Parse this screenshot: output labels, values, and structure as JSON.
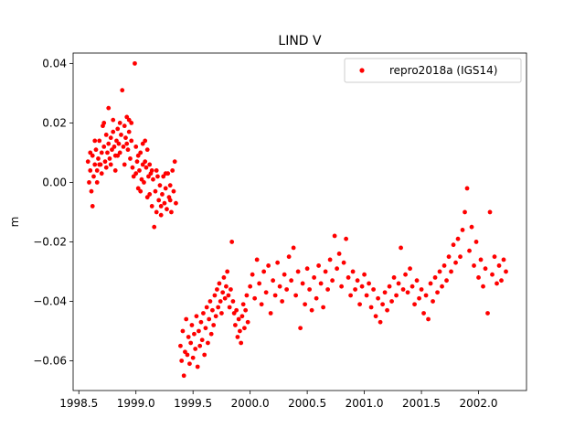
{
  "chart_data": {
    "type": "scatter",
    "title": "LIND V",
    "xlabel": "",
    "ylabel": "m",
    "xlim": [
      1998.45,
      2002.42
    ],
    "ylim": [
      -0.07,
      0.0435
    ],
    "xticks": [
      1998.5,
      1999.0,
      1999.5,
      2000.0,
      2000.5,
      2001.0,
      2001.5,
      2002.0
    ],
    "xtick_labels": [
      "1998.5",
      "1999.0",
      "1999.5",
      "2000.0",
      "2000.5",
      "2001.0",
      "2001.5",
      "2002.0"
    ],
    "yticks": [
      -0.06,
      -0.04,
      -0.02,
      0.0,
      0.02,
      0.04
    ],
    "ytick_labels": [
      "−0.06",
      "−0.04",
      "−0.02",
      "0.00",
      "0.02",
      "0.04"
    ],
    "grid": false,
    "legend_position": "top-right",
    "marker_color": "#ff0000",
    "series": [
      {
        "name": "repro2018a (IGS14)",
        "points": [
          [
            1998.58,
            0.007
          ],
          [
            1998.59,
            0.0
          ],
          [
            1998.6,
            0.004
          ],
          [
            1998.61,
            -0.003
          ],
          [
            1998.62,
            0.009
          ],
          [
            1998.63,
            0.002
          ],
          [
            1998.64,
            0.006
          ],
          [
            1998.65,
            0.011
          ],
          [
            1998.66,
            0.004
          ],
          [
            1998.67,
            0.008
          ],
          [
            1998.68,
            0.014
          ],
          [
            1998.69,
            0.006
          ],
          [
            1998.7,
            0.01
          ],
          [
            1998.71,
            0.019
          ],
          [
            1998.72,
            0.012
          ],
          [
            1998.73,
            0.007
          ],
          [
            1998.74,
            0.016
          ],
          [
            1998.75,
            0.01
          ],
          [
            1998.76,
            0.013
          ],
          [
            1998.77,
            0.008
          ],
          [
            1998.78,
            0.015
          ],
          [
            1998.79,
            0.011
          ],
          [
            1998.8,
            0.017
          ],
          [
            1998.81,
            0.012
          ],
          [
            1998.82,
            0.009
          ],
          [
            1998.83,
            0.014
          ],
          [
            1998.84,
            0.018
          ],
          [
            1998.85,
            0.013
          ],
          [
            1998.86,
            0.01
          ],
          [
            1998.87,
            0.016
          ],
          [
            1998.88,
            0.031
          ],
          [
            1998.89,
            0.012
          ],
          [
            1998.9,
            0.019
          ],
          [
            1998.91,
            0.015
          ],
          [
            1998.92,
            0.022
          ],
          [
            1998.93,
            0.011
          ],
          [
            1998.94,
            0.017
          ],
          [
            1998.95,
            0.008
          ],
          [
            1998.96,
            0.014
          ],
          [
            1998.97,
            0.005
          ],
          [
            1998.98,
            0.002
          ],
          [
            1998.99,
            0.04
          ],
          [
            1999.0,
            0.003
          ],
          [
            1999.01,
            0.007
          ],
          [
            1999.02,
            -0.002
          ],
          [
            1999.03,
            0.004
          ],
          [
            1999.04,
            0.01
          ],
          [
            1999.05,
            0.001
          ],
          [
            1999.06,
            0.006
          ],
          [
            1999.07,
            0.0
          ],
          [
            1999.08,
            0.014
          ],
          [
            1999.09,
            0.005
          ],
          [
            1999.1,
            0.011
          ],
          [
            1999.11,
            0.002
          ],
          [
            1999.12,
            -0.004
          ],
          [
            1999.13,
            0.003
          ],
          [
            1999.14,
            -0.008
          ],
          [
            1999.15,
            0.001
          ],
          [
            1999.16,
            -0.015
          ],
          [
            1999.17,
            -0.003
          ],
          [
            1999.18,
            -0.01
          ],
          [
            1999.19,
            0.002
          ],
          [
            1999.2,
            -0.006
          ],
          [
            1999.21,
            -0.001
          ],
          [
            1999.22,
            -0.011
          ],
          [
            1999.23,
            -0.004
          ],
          [
            1999.24,
            0.002
          ],
          [
            1999.25,
            -0.007
          ],
          [
            1999.26,
            -0.002
          ],
          [
            1999.27,
            -0.009
          ],
          [
            1999.28,
            0.003
          ],
          [
            1999.29,
            -0.005
          ],
          [
            1999.3,
            -0.001
          ],
          [
            1999.31,
            -0.01
          ],
          [
            1999.32,
            0.004
          ],
          [
            1999.33,
            -0.003
          ],
          [
            1999.34,
            0.007
          ],
          [
            1999.35,
            -0.007
          ],
          [
            1998.6,
            0.01
          ],
          [
            1998.62,
            -0.008
          ],
          [
            1998.64,
            0.014
          ],
          [
            1998.66,
            0.0
          ],
          [
            1998.68,
            0.006
          ],
          [
            1998.7,
            0.003
          ],
          [
            1998.72,
            0.02
          ],
          [
            1998.74,
            0.005
          ],
          [
            1998.76,
            0.025
          ],
          [
            1998.78,
            0.006
          ],
          [
            1998.8,
            0.021
          ],
          [
            1998.82,
            0.004
          ],
          [
            1998.84,
            0.009
          ],
          [
            1998.86,
            0.02
          ],
          [
            1998.9,
            0.006
          ],
          [
            1998.92,
            0.013
          ],
          [
            1998.94,
            0.021
          ],
          [
            1998.96,
            0.02
          ],
          [
            1999.0,
            0.012
          ],
          [
            1999.02,
            0.009
          ],
          [
            1999.04,
            -0.003
          ],
          [
            1999.06,
            0.013
          ],
          [
            1999.08,
            0.007
          ],
          [
            1999.1,
            -0.005
          ],
          [
            1999.12,
            0.006
          ],
          [
            1999.14,
            0.004
          ],
          [
            1999.18,
            0.004
          ],
          [
            1999.22,
            -0.008
          ],
          [
            1999.26,
            0.003
          ],
          [
            1999.3,
            -0.006
          ],
          [
            1999.39,
            -0.055
          ],
          [
            1999.4,
            -0.06
          ],
          [
            1999.41,
            -0.05
          ],
          [
            1999.42,
            -0.065
          ],
          [
            1999.43,
            -0.057
          ],
          [
            1999.44,
            -0.046
          ],
          [
            1999.45,
            -0.058
          ],
          [
            1999.46,
            -0.052
          ],
          [
            1999.47,
            -0.061
          ],
          [
            1999.48,
            -0.054
          ],
          [
            1999.49,
            -0.048
          ],
          [
            1999.5,
            -0.059
          ],
          [
            1999.51,
            -0.051
          ],
          [
            1999.52,
            -0.056
          ],
          [
            1999.53,
            -0.045
          ],
          [
            1999.54,
            -0.062
          ],
          [
            1999.55,
            -0.05
          ],
          [
            1999.56,
            -0.055
          ],
          [
            1999.57,
            -0.047
          ],
          [
            1999.58,
            -0.053
          ],
          [
            1999.59,
            -0.044
          ],
          [
            1999.6,
            -0.058
          ],
          [
            1999.61,
            -0.049
          ],
          [
            1999.62,
            -0.042
          ],
          [
            1999.63,
            -0.054
          ],
          [
            1999.64,
            -0.046
          ],
          [
            1999.65,
            -0.04
          ],
          [
            1999.66,
            -0.051
          ],
          [
            1999.67,
            -0.043
          ],
          [
            1999.68,
            -0.048
          ],
          [
            1999.69,
            -0.038
          ],
          [
            1999.7,
            -0.045
          ],
          [
            1999.71,
            -0.036
          ],
          [
            1999.72,
            -0.042
          ],
          [
            1999.73,
            -0.034
          ],
          [
            1999.74,
            -0.04
          ],
          [
            1999.75,
            -0.044
          ],
          [
            1999.76,
            -0.037
          ],
          [
            1999.77,
            -0.032
          ],
          [
            1999.78,
            -0.039
          ],
          [
            1999.79,
            -0.035
          ],
          [
            1999.8,
            -0.03
          ],
          [
            1999.81,
            -0.038
          ],
          [
            1999.82,
            -0.042
          ],
          [
            1999.83,
            -0.036
          ],
          [
            1999.84,
            -0.02
          ],
          [
            1999.85,
            -0.04
          ],
          [
            1999.86,
            -0.044
          ],
          [
            1999.87,
            -0.048
          ],
          [
            1999.88,
            -0.043
          ],
          [
            1999.89,
            -0.052
          ],
          [
            1999.9,
            -0.046
          ],
          [
            1999.91,
            -0.05
          ],
          [
            1999.92,
            -0.054
          ],
          [
            1999.93,
            -0.045
          ],
          [
            1999.94,
            -0.041
          ],
          [
            1999.95,
            -0.049
          ],
          [
            1999.96,
            -0.043
          ],
          [
            1999.97,
            -0.038
          ],
          [
            1999.98,
            -0.047
          ],
          [
            2000.0,
            -0.035
          ],
          [
            2000.02,
            -0.031
          ],
          [
            2000.04,
            -0.039
          ],
          [
            2000.06,
            -0.026
          ],
          [
            2000.08,
            -0.034
          ],
          [
            2000.1,
            -0.041
          ],
          [
            2000.12,
            -0.03
          ],
          [
            2000.14,
            -0.037
          ],
          [
            2000.16,
            -0.028
          ],
          [
            2000.18,
            -0.044
          ],
          [
            2000.2,
            -0.033
          ],
          [
            2000.22,
            -0.038
          ],
          [
            2000.24,
            -0.027
          ],
          [
            2000.26,
            -0.035
          ],
          [
            2000.28,
            -0.04
          ],
          [
            2000.3,
            -0.031
          ],
          [
            2000.32,
            -0.036
          ],
          [
            2000.34,
            -0.025
          ],
          [
            2000.36,
            -0.033
          ],
          [
            2000.38,
            -0.022
          ],
          [
            2000.4,
            -0.038
          ],
          [
            2000.42,
            -0.03
          ],
          [
            2000.44,
            -0.049
          ],
          [
            2000.46,
            -0.034
          ],
          [
            2000.48,
            -0.041
          ],
          [
            2000.5,
            -0.029
          ],
          [
            2000.52,
            -0.036
          ],
          [
            2000.54,
            -0.043
          ],
          [
            2000.56,
            -0.032
          ],
          [
            2000.58,
            -0.039
          ],
          [
            2000.6,
            -0.028
          ],
          [
            2000.62,
            -0.034
          ],
          [
            2000.64,
            -0.042
          ],
          [
            2000.66,
            -0.03
          ],
          [
            2000.68,
            -0.036
          ],
          [
            2000.7,
            -0.026
          ],
          [
            2000.72,
            -0.033
          ],
          [
            2000.74,
            -0.018
          ],
          [
            2000.76,
            -0.029
          ],
          [
            2000.78,
            -0.024
          ],
          [
            2000.8,
            -0.035
          ],
          [
            2000.82,
            -0.027
          ],
          [
            2000.84,
            -0.019
          ],
          [
            2000.86,
            -0.032
          ],
          [
            2000.88,
            -0.038
          ],
          [
            2000.9,
            -0.03
          ],
          [
            2000.92,
            -0.036
          ],
          [
            2000.94,
            -0.033
          ],
          [
            2000.96,
            -0.041
          ],
          [
            2000.98,
            -0.035
          ],
          [
            2001.0,
            -0.031
          ],
          [
            2001.02,
            -0.038
          ],
          [
            2001.04,
            -0.034
          ],
          [
            2001.06,
            -0.042
          ],
          [
            2001.08,
            -0.036
          ],
          [
            2001.1,
            -0.045
          ],
          [
            2001.12,
            -0.039
          ],
          [
            2001.14,
            -0.047
          ],
          [
            2001.16,
            -0.041
          ],
          [
            2001.18,
            -0.037
          ],
          [
            2001.2,
            -0.043
          ],
          [
            2001.22,
            -0.035
          ],
          [
            2001.24,
            -0.04
          ],
          [
            2001.26,
            -0.032
          ],
          [
            2001.28,
            -0.038
          ],
          [
            2001.3,
            -0.034
          ],
          [
            2001.32,
            -0.022
          ],
          [
            2001.34,
            -0.036
          ],
          [
            2001.36,
            -0.031
          ],
          [
            2001.38,
            -0.037
          ],
          [
            2001.4,
            -0.029
          ],
          [
            2001.42,
            -0.035
          ],
          [
            2001.44,
            -0.041
          ],
          [
            2001.46,
            -0.033
          ],
          [
            2001.48,
            -0.039
          ],
          [
            2001.5,
            -0.036
          ],
          [
            2001.52,
            -0.044
          ],
          [
            2001.54,
            -0.038
          ],
          [
            2001.56,
            -0.046
          ],
          [
            2001.58,
            -0.034
          ],
          [
            2001.6,
            -0.04
          ],
          [
            2001.62,
            -0.032
          ],
          [
            2001.64,
            -0.037
          ],
          [
            2001.66,
            -0.03
          ],
          [
            2001.68,
            -0.035
          ],
          [
            2001.7,
            -0.028
          ],
          [
            2001.72,
            -0.033
          ],
          [
            2001.74,
            -0.025
          ],
          [
            2001.76,
            -0.03
          ],
          [
            2001.78,
            -0.021
          ],
          [
            2001.8,
            -0.027
          ],
          [
            2001.82,
            -0.019
          ],
          [
            2001.84,
            -0.025
          ],
          [
            2001.86,
            -0.016
          ],
          [
            2001.88,
            -0.01
          ],
          [
            2001.9,
            -0.002
          ],
          [
            2001.92,
            -0.023
          ],
          [
            2001.94,
            -0.015
          ],
          [
            2001.96,
            -0.028
          ],
          [
            2001.98,
            -0.02
          ],
          [
            2002.0,
            -0.032
          ],
          [
            2002.02,
            -0.026
          ],
          [
            2002.04,
            -0.035
          ],
          [
            2002.06,
            -0.029
          ],
          [
            2002.08,
            -0.044
          ],
          [
            2002.1,
            -0.01
          ],
          [
            2002.12,
            -0.031
          ],
          [
            2002.14,
            -0.025
          ],
          [
            2002.16,
            -0.034
          ],
          [
            2002.18,
            -0.028
          ],
          [
            2002.2,
            -0.033
          ],
          [
            2002.22,
            -0.026
          ],
          [
            2002.24,
            -0.03
          ]
        ]
      }
    ]
  }
}
